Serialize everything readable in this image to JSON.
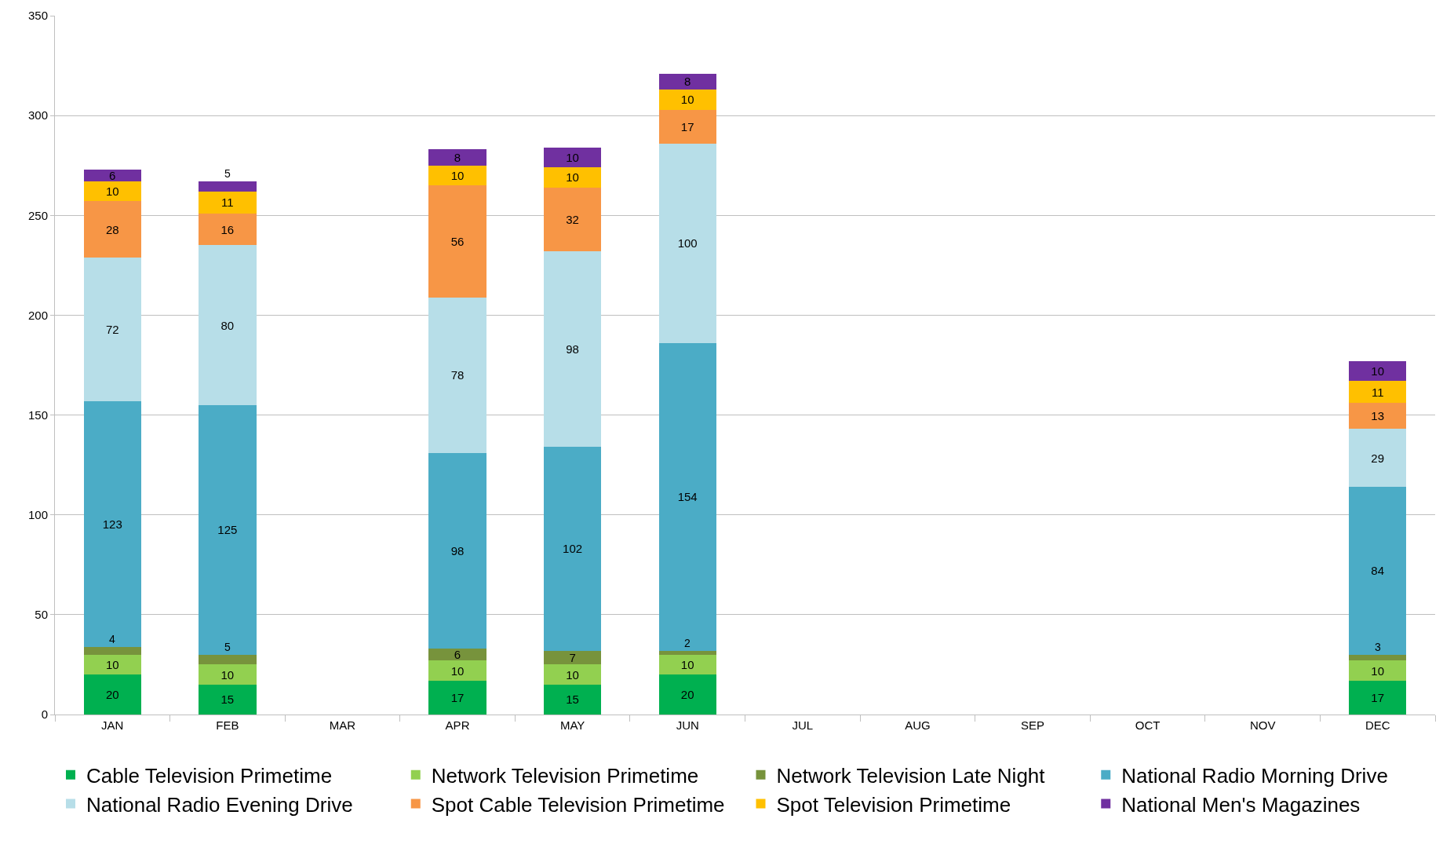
{
  "chart_data": {
    "type": "bar",
    "stacked": true,
    "categories": [
      "JAN",
      "FEB",
      "MAR",
      "APR",
      "MAY",
      "JUN",
      "JUL",
      "AUG",
      "SEP",
      "OCT",
      "NOV",
      "DEC"
    ],
    "series": [
      {
        "name": "Cable Television Primetime",
        "color": "#00b050",
        "values": [
          20,
          15,
          null,
          17,
          15,
          20,
          null,
          null,
          null,
          null,
          null,
          17
        ]
      },
      {
        "name": "Network Television Primetime",
        "color": "#92d050",
        "values": [
          10,
          10,
          null,
          10,
          10,
          10,
          null,
          null,
          null,
          null,
          null,
          10
        ]
      },
      {
        "name": "Network Television Late Night",
        "color": "#77933c",
        "values": [
          4,
          5,
          null,
          6,
          7,
          2,
          null,
          null,
          null,
          null,
          null,
          3
        ]
      },
      {
        "name": "National Radio Morning Drive",
        "color": "#4bacc6",
        "values": [
          123,
          125,
          null,
          98,
          102,
          154,
          null,
          null,
          null,
          null,
          null,
          84
        ]
      },
      {
        "name": "National Radio Evening Drive",
        "color": "#b7dee8",
        "values": [
          72,
          80,
          null,
          78,
          98,
          100,
          null,
          null,
          null,
          null,
          null,
          29
        ]
      },
      {
        "name": "Spot Cable Television Primetime",
        "color": "#f79646",
        "values": [
          28,
          16,
          null,
          56,
          32,
          17,
          null,
          null,
          null,
          null,
          null,
          13
        ]
      },
      {
        "name": "Spot Television Primetime",
        "color": "#ffc000",
        "values": [
          10,
          11,
          null,
          10,
          10,
          10,
          null,
          null,
          null,
          null,
          null,
          11
        ]
      },
      {
        "name": "National Men's Magazines",
        "color": "#7030a0",
        "values": [
          6,
          5,
          null,
          8,
          10,
          8,
          null,
          null,
          null,
          null,
          null,
          10
        ]
      }
    ],
    "ylim": [
      0,
      350
    ],
    "yticks": [
      0,
      50,
      100,
      150,
      200,
      250,
      300,
      350
    ],
    "grid": "y",
    "legend": "bottom",
    "data_labels": true
  }
}
